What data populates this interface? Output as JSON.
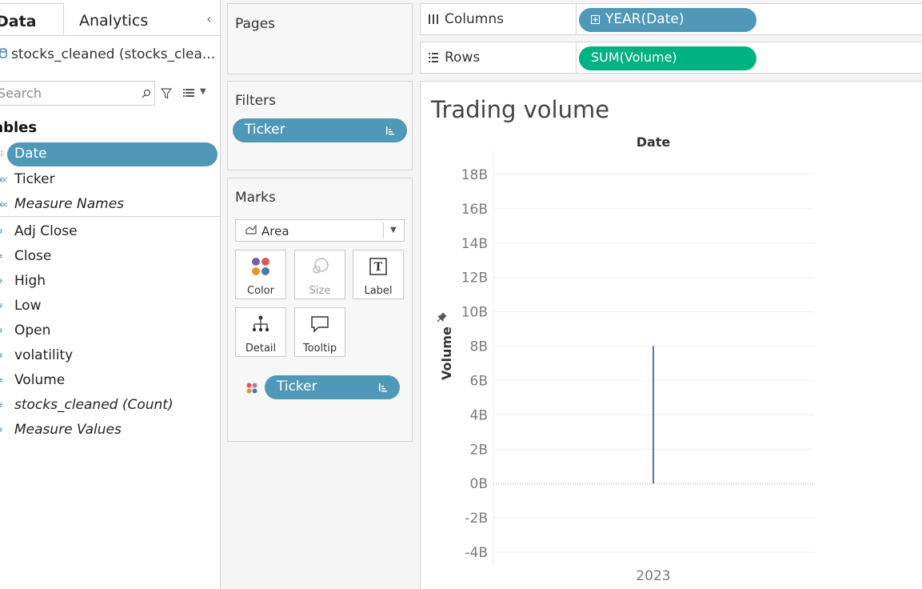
{
  "data_pane": {
    "tabs": [
      {
        "label": "Data",
        "active": true
      },
      {
        "label": "Analytics",
        "active": false
      }
    ],
    "datasource": "stocks_cleaned (stocks_clea...",
    "search_placeholder": "Search",
    "tables_heading": "Tables",
    "fields": [
      {
        "label": "Date",
        "type": "date",
        "selected": true,
        "italic": false
      },
      {
        "label": "Ticker",
        "type": "string",
        "selected": false,
        "italic": false
      },
      {
        "label": "Measure Names",
        "type": "string",
        "selected": false,
        "italic": true
      },
      {
        "label": "Adj Close",
        "type": "measure",
        "selected": false,
        "italic": false
      },
      {
        "label": "Close",
        "type": "measure",
        "selected": false,
        "italic": false
      },
      {
        "label": "High",
        "type": "measure",
        "selected": false,
        "italic": false
      },
      {
        "label": "Low",
        "type": "measure",
        "selected": false,
        "italic": false
      },
      {
        "label": "Open",
        "type": "measure",
        "selected": false,
        "italic": false
      },
      {
        "label": "volatility",
        "type": "measure",
        "selected": false,
        "italic": false
      },
      {
        "label": "Volume",
        "type": "measure",
        "selected": false,
        "italic": false
      },
      {
        "label": "stocks_cleaned (Count)",
        "type": "measure",
        "selected": false,
        "italic": true
      },
      {
        "label": "Measure Values",
        "type": "measure",
        "selected": false,
        "italic": true
      }
    ]
  },
  "pages": {
    "title": "Pages"
  },
  "filters": {
    "title": "Filters",
    "items": [
      "Ticker"
    ]
  },
  "marks": {
    "title": "Marks",
    "mark_type": "Area",
    "buttons": [
      {
        "label": "Color",
        "icon": "color-dots-icon",
        "enabled": true
      },
      {
        "label": "Size",
        "icon": "size-icon",
        "enabled": false
      },
      {
        "label": "Label",
        "icon": "text-label-icon",
        "enabled": true
      },
      {
        "label": "Detail",
        "icon": "detail-hierarchy-icon",
        "enabled": true
      },
      {
        "label": "Tooltip",
        "icon": "tooltip-bubble-icon",
        "enabled": true
      }
    ],
    "color_field": "Ticker"
  },
  "shelves": {
    "columns": {
      "label": "Columns",
      "pill": "YEAR(Date)"
    },
    "rows": {
      "label": "Rows",
      "pill": "SUM(Volume)"
    }
  },
  "colors": {
    "dimension_pill": "#4f98b8",
    "measure_pill": "#00b181",
    "mark_line": "#4e79a7"
  },
  "view": {
    "title": "Trading volume"
  },
  "chart_data": {
    "type": "area",
    "title": "Trading volume",
    "column_header": "Date",
    "ylabel": "Volume",
    "categories": [
      "2023"
    ],
    "series": [
      {
        "values": [
          8000000000
        ]
      }
    ],
    "ylim": [
      -4000000000,
      18000000000
    ],
    "yticks": [
      "18B",
      "16B",
      "14B",
      "12B",
      "10B",
      "8B",
      "6B",
      "4B",
      "2B",
      "0B",
      "-2B",
      "-4B"
    ],
    "ytick_values": [
      18,
      16,
      14,
      12,
      10,
      8,
      6,
      4,
      2,
      0,
      -2,
      -4
    ],
    "grid": true
  }
}
